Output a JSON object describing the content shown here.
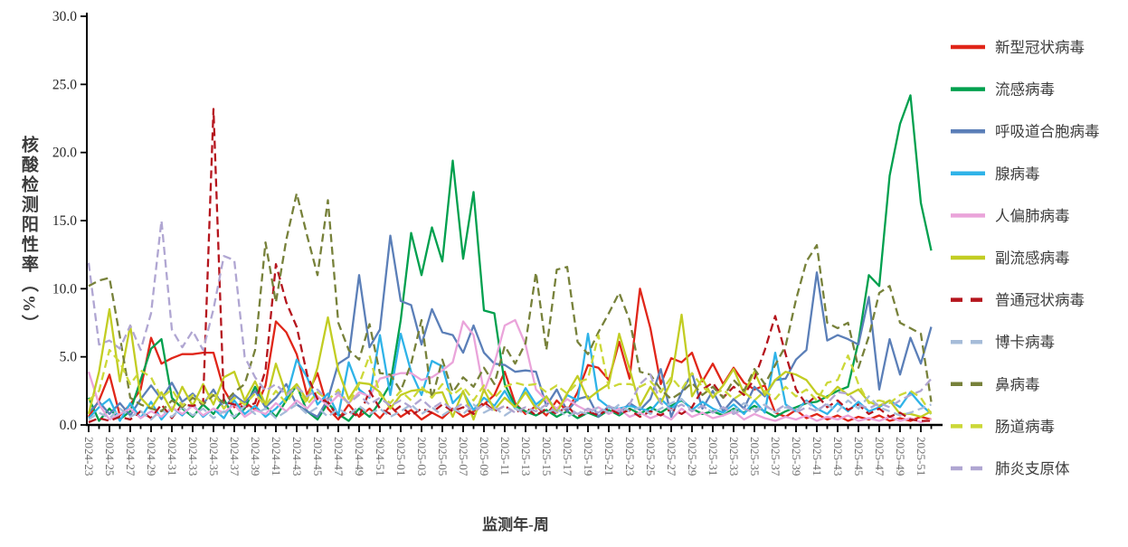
{
  "axes": {
    "x_title": "监测年-周",
    "y_title": "核酸检测阳性率（%）"
  },
  "chart_data": {
    "type": "line",
    "title": "",
    "xlabel": "监测年-周",
    "ylabel": "核酸检测阳性率（%）",
    "ylim": [
      0,
      30
    ],
    "ytick_step": 5,
    "ytick_labels": [
      "0.0",
      "5.0",
      "10.0",
      "15.0",
      "20.0",
      "25.0",
      "30.0"
    ],
    "grid": false,
    "legend_position": "right",
    "xtick_label_every": 2,
    "x_categories": [
      "2024-23",
      "2024-24",
      "2024-25",
      "2024-26",
      "2024-27",
      "2024-28",
      "2024-29",
      "2024-30",
      "2024-31",
      "2024-32",
      "2024-33",
      "2024-34",
      "2024-35",
      "2024-36",
      "2024-37",
      "2024-38",
      "2024-39",
      "2024-40",
      "2024-41",
      "2024-42",
      "2024-43",
      "2024-44",
      "2024-45",
      "2024-46",
      "2024-47",
      "2024-48",
      "2024-49",
      "2024-50",
      "2024-51",
      "2024-52",
      "2025-01",
      "2025-02",
      "2025-03",
      "2025-04",
      "2025-05",
      "2025-06",
      "2025-07",
      "2025-08",
      "2025-09",
      "2025-10",
      "2025-11",
      "2025-12",
      "2025-13",
      "2025-14",
      "2025-15",
      "2025-16",
      "2025-17",
      "2025-18",
      "2025-19",
      "2025-20",
      "2025-21",
      "2025-22",
      "2025-23",
      "2025-24",
      "2025-25",
      "2025-26",
      "2025-27",
      "2025-28",
      "2025-29",
      "2025-30",
      "2025-31",
      "2025-32",
      "2025-33",
      "2025-34",
      "2025-35",
      "2025-36",
      "2025-37",
      "2025-38",
      "2025-39",
      "2025-40",
      "2025-41",
      "2025-42",
      "2025-43",
      "2025-44",
      "2025-45",
      "2025-46",
      "2025-47",
      "2025-48",
      "2025-49",
      "2025-50",
      "2025-51",
      "2025-52"
    ],
    "series": [
      {
        "name": "新型冠状病毒",
        "color": "#e02619",
        "style": "solid",
        "values": [
          0.6,
          1.8,
          3.7,
          0.7,
          1.5,
          2.6,
          6.4,
          4.5,
          4.9,
          5.2,
          5.2,
          5.3,
          5.3,
          2.6,
          1.3,
          1.7,
          1.1,
          2.9,
          7.6,
          6.8,
          5.2,
          2.2,
          3.8,
          1.2,
          0.4,
          1.5,
          0.6,
          1.2,
          0.5,
          1.4,
          0.6,
          1.1,
          0.4,
          0.9,
          0.5,
          1.2,
          0.6,
          1.0,
          1.5,
          2.2,
          3.9,
          1.6,
          0.8,
          1.4,
          0.7,
          1.8,
          1.0,
          2.4,
          4.4,
          4.2,
          3.3,
          6.1,
          3.4,
          10.0,
          7.1,
          3.0,
          4.9,
          4.6,
          5.3,
          3.2,
          4.5,
          3.0,
          4.2,
          3.1,
          2.6,
          2.9,
          0.9,
          0.6,
          1.1,
          0.5,
          0.8,
          0.4,
          0.7,
          0.3,
          0.6,
          0.4,
          0.7,
          0.3,
          0.5,
          0.3,
          0.6,
          0.4
        ]
      },
      {
        "name": "流感病毒",
        "color": "#00a04e",
        "style": "solid",
        "values": [
          2.0,
          0.3,
          1.2,
          0.4,
          1.0,
          3.3,
          5.6,
          6.3,
          2.0,
          1.2,
          0.6,
          1.5,
          0.8,
          1.9,
          0.5,
          1.2,
          2.8,
          1.4,
          0.6,
          1.8,
          2.9,
          1.0,
          0.4,
          1.6,
          0.8,
          0.3,
          1.2,
          0.6,
          1.7,
          3.0,
          7.7,
          14.1,
          11.0,
          14.5,
          12.0,
          19.4,
          12.2,
          17.1,
          8.4,
          8.2,
          3.0,
          1.4,
          1.0,
          0.7,
          1.1,
          0.6,
          1.0,
          0.5,
          0.9,
          0.6,
          1.1,
          0.7,
          1.2,
          0.8,
          1.3,
          0.9,
          1.4,
          1.8,
          1.2,
          0.8,
          1.0,
          0.7,
          1.2,
          0.9,
          1.4,
          1.0,
          0.6,
          1.0,
          1.3,
          1.6,
          1.7,
          2.1,
          2.5,
          2.8,
          6.1,
          11.0,
          10.2,
          18.3,
          22.1,
          24.2,
          16.3,
          12.8
        ]
      },
      {
        "name": "呼吸道合胞病毒",
        "color": "#5b7fb8",
        "style": "solid",
        "values": [
          0.9,
          1.7,
          0.8,
          1.6,
          0.7,
          1.9,
          2.9,
          1.9,
          3.1,
          1.7,
          2.3,
          1.5,
          2.6,
          1.2,
          2.2,
          1.6,
          2.5,
          1.3,
          2.0,
          3.0,
          1.5,
          1.0,
          0.6,
          1.9,
          4.5,
          5.0,
          11.0,
          5.7,
          7.0,
          13.9,
          9.1,
          8.8,
          5.9,
          8.5,
          6.8,
          6.6,
          5.3,
          7.3,
          5.3,
          4.5,
          4.4,
          3.9,
          4.0,
          3.9,
          1.4,
          2.6,
          1.0,
          1.9,
          2.1,
          0.6,
          1.4,
          0.8,
          1.6,
          1.1,
          1.9,
          4.1,
          0.6,
          2.4,
          3.8,
          1.2,
          2.5,
          1.0,
          1.9,
          1.2,
          2.8,
          2.1,
          3.3,
          3.4,
          4.8,
          5.5,
          11.2,
          6.2,
          6.6,
          6.3,
          5.9,
          9.4,
          2.6,
          6.3,
          3.7,
          6.4,
          4.5,
          7.2
        ]
      },
      {
        "name": "腺病毒",
        "color": "#2fb3e8",
        "style": "solid",
        "values": [
          0.5,
          1.3,
          1.9,
          0.3,
          1.6,
          0.5,
          1.7,
          0.4,
          1.3,
          0.7,
          1.5,
          0.6,
          1.2,
          0.5,
          1.8,
          0.8,
          1.4,
          0.6,
          1.2,
          2.0,
          4.8,
          3.5,
          1.5,
          2.3,
          0.7,
          4.6,
          2.6,
          2.0,
          6.6,
          2.2,
          6.7,
          3.9,
          2.2,
          4.7,
          4.3,
          1.6,
          2.4,
          1.1,
          2.0,
          1.4,
          2.5,
          1.2,
          2.7,
          1.5,
          2.1,
          1.0,
          2.2,
          1.8,
          6.7,
          1.9,
          1.3,
          1.2,
          1.4,
          1.2,
          1.0,
          1.9,
          1.2,
          1.9,
          1.1,
          1.7,
          1.2,
          0.9,
          1.5,
          0.8,
          1.8,
          0.9,
          5.3,
          1.5,
          1.0,
          1.8,
          1.2,
          0.8,
          1.6,
          1.0,
          1.7,
          1.0,
          1.3,
          1.8,
          1.3,
          2.4,
          1.5,
          0.8
        ]
      },
      {
        "name": "人偏肺病毒",
        "color": "#eaa4da",
        "style": "solid",
        "values": [
          3.9,
          1.5,
          0.4,
          0.8,
          1.2,
          0.5,
          1.0,
          0.6,
          1.3,
          0.8,
          1.4,
          0.7,
          1.2,
          0.9,
          1.5,
          0.6,
          1.1,
          0.8,
          1.6,
          1.0,
          1.8,
          1.2,
          2.1,
          1.4,
          2.2,
          1.6,
          2.4,
          2.1,
          3.4,
          3.6,
          3.8,
          3.8,
          3.3,
          3.5,
          4.0,
          4.6,
          7.6,
          6.6,
          2.4,
          4.5,
          7.3,
          7.7,
          5.9,
          2.6,
          1.8,
          1.2,
          1.9,
          1.4,
          1.0,
          1.3,
          0.8,
          1.2,
          0.6,
          0.9,
          0.5,
          0.8,
          0.4,
          1.2,
          0.6,
          0.9,
          0.5,
          0.7,
          1.0,
          0.4,
          0.8,
          0.5,
          0.3,
          0.6,
          0.4,
          0.7,
          0.3,
          0.6,
          0.4,
          0.7,
          0.3,
          0.5,
          0.3,
          0.6,
          0.3,
          0.5,
          0.2,
          0.4
        ]
      },
      {
        "name": "副流感病毒",
        "color": "#c2cd23",
        "style": "solid",
        "values": [
          0.8,
          3.9,
          8.5,
          3.2,
          7.3,
          2.0,
          1.2,
          2.4,
          1.0,
          2.8,
          1.4,
          3.0,
          1.5,
          3.5,
          3.9,
          1.8,
          3.2,
          1.5,
          4.5,
          2.2,
          3.0,
          1.8,
          4.2,
          7.9,
          4.0,
          1.9,
          3.1,
          3.0,
          2.4,
          1.2,
          2.2,
          2.5,
          2.6,
          2.3,
          2.4,
          0.6,
          2.5,
          0.4,
          2.6,
          1.1,
          2.0,
          1.3,
          2.4,
          1.2,
          2.1,
          0.9,
          2.3,
          3.6,
          1.9,
          2.5,
          3.0,
          6.7,
          4.1,
          1.4,
          2.8,
          1.6,
          3.2,
          8.1,
          2.1,
          3.4,
          2.0,
          2.9,
          4.1,
          2.3,
          3.9,
          2.2,
          3.3,
          3.9,
          3.7,
          3.3,
          2.3,
          2.0,
          2.8,
          2.2,
          2.6,
          1.7,
          1.4,
          1.8,
          0.8,
          0.8,
          0.6,
          1.0
        ]
      },
      {
        "name": "普通冠状病毒",
        "color": "#b5151d",
        "style": "dashed",
        "values": [
          0.2,
          0.5,
          0.3,
          0.6,
          0.4,
          1.0,
          0.5,
          1.5,
          0.5,
          1.5,
          1.4,
          1.6,
          23.2,
          1.7,
          1.5,
          1.3,
          1.6,
          4.0,
          11.8,
          9.0,
          7.2,
          3.7,
          1.9,
          1.7,
          0.5,
          1.0,
          0.6,
          2.5,
          1.2,
          0.8,
          1.4,
          0.7,
          1.2,
          0.9,
          1.5,
          1.0,
          1.3,
          0.8,
          1.7,
          1.0,
          1.4,
          0.9,
          1.3,
          0.7,
          1.2,
          0.8,
          1.4,
          0.6,
          1.0,
          0.7,
          1.2,
          0.8,
          1.1,
          0.6,
          1.0,
          0.7,
          1.2,
          0.8,
          1.3,
          2.6,
          3.1,
          2.0,
          2.8,
          2.2,
          3.4,
          5.5,
          8.0,
          5.2,
          2.6,
          1.5,
          2.2,
          1.3,
          1.8,
          1.1,
          1.5,
          0.8,
          1.2,
          0.6,
          0.9,
          0.4,
          0.3,
          0.3
        ]
      },
      {
        "name": "博卡病毒",
        "color": "#a6bcd9",
        "style": "dashed",
        "values": [
          0.4,
          0.9,
          0.5,
          1.2,
          0.6,
          1.0,
          0.4,
          1.1,
          0.6,
          1.3,
          0.7,
          1.2,
          0.5,
          1.0,
          0.6,
          1.4,
          0.8,
          1.2,
          0.5,
          1.0,
          1.5,
          0.8,
          1.3,
          0.6,
          1.2,
          0.7,
          1.4,
          0.8,
          1.2,
          0.6,
          1.0,
          1.5,
          0.8,
          1.3,
          0.7,
          1.2,
          0.8,
          1.5,
          0.9,
          1.3,
          0.7,
          1.2,
          0.8,
          1.4,
          0.9,
          1.2,
          0.6,
          1.0,
          0.8,
          1.3,
          0.9,
          1.5,
          1.0,
          1.3,
          0.8,
          1.2,
          1.6,
          1.9,
          1.0,
          1.4,
          0.9,
          1.3,
          1.0,
          1.6,
          1.1,
          1.5,
          0.9,
          1.3,
          1.0,
          1.7,
          1.1,
          1.5,
          1.0,
          1.8,
          1.2,
          2.1,
          1.3,
          1.0,
          0.7,
          0.9,
          1.2,
          1.5
        ]
      },
      {
        "name": "鼻病毒",
        "color": "#77813a",
        "style": "dashed",
        "values": [
          10.2,
          10.6,
          10.8,
          6.5,
          2.0,
          1.5,
          1.2,
          1.0,
          1.8,
          1.3,
          2.0,
          1.5,
          2.2,
          1.6,
          2.4,
          3.0,
          5.5,
          13.4,
          9.0,
          13.6,
          17.0,
          13.9,
          11.0,
          16.5,
          7.5,
          5.5,
          4.8,
          7.4,
          3.8,
          3.7,
          2.5,
          4.5,
          7.7,
          1.9,
          4.8,
          2.4,
          3.5,
          2.8,
          4.2,
          3.0,
          5.8,
          4.5,
          6.0,
          11.2,
          5.5,
          11.4,
          11.6,
          6.1,
          5.2,
          6.8,
          8.2,
          9.7,
          7.7,
          3.9,
          3.7,
          2.6,
          1.9,
          2.4,
          3.1,
          2.2,
          2.8,
          2.0,
          3.3,
          2.5,
          4.1,
          3.0,
          4.4,
          5.8,
          9.2,
          12.0,
          13.2,
          7.5,
          7.1,
          7.5,
          4.2,
          6.5,
          9.7,
          10.2,
          7.5,
          7.1,
          6.7,
          1.7
        ]
      },
      {
        "name": "肠道病毒",
        "color": "#ccd838",
        "style": "dashed",
        "values": [
          1.8,
          2.5,
          5.5,
          4.6,
          3.0,
          4.0,
          3.5,
          2.0,
          2.6,
          1.4,
          2.2,
          1.6,
          2.4,
          1.2,
          2.0,
          1.5,
          2.3,
          1.4,
          2.5,
          1.6,
          2.8,
          1.5,
          2.4,
          1.8,
          2.6,
          1.5,
          3.0,
          5.1,
          2.2,
          1.6,
          2.5,
          1.8,
          2.8,
          2.0,
          3.0,
          2.2,
          2.8,
          1.8,
          2.9,
          2.0,
          2.8,
          3.1,
          2.9,
          3.0,
          2.4,
          2.9,
          2.3,
          3.1,
          3.4,
          6.6,
          2.7,
          3.0,
          3.0,
          2.8,
          3.2,
          2.4,
          3.5,
          2.6,
          3.8,
          2.8,
          2.2,
          2.6,
          1.9,
          2.4,
          1.8,
          2.5,
          1.9,
          2.8,
          2.1,
          2.6,
          1.8,
          3.1,
          3.3,
          5.1,
          3.0,
          1.6,
          1.8,
          1.6,
          2.2,
          2.5,
          2.0,
          0.8
        ]
      },
      {
        "name": "肺炎支原体",
        "color": "#b0a6d2",
        "style": "dashed",
        "values": [
          11.9,
          5.9,
          6.2,
          5.6,
          7.3,
          5.5,
          8.2,
          15.0,
          7.0,
          5.7,
          6.9,
          5.5,
          8.5,
          12.4,
          12.1,
          5.0,
          3.5,
          2.5,
          3.0,
          2.2,
          2.8,
          2.1,
          2.6,
          1.8,
          2.4,
          1.6,
          2.2,
          1.5,
          2.0,
          1.4,
          1.8,
          1.3,
          1.9,
          1.2,
          1.7,
          1.1,
          1.6,
          1.0,
          1.5,
          1.0,
          1.4,
          0.9,
          1.3,
          1.0,
          1.5,
          0.9,
          1.3,
          0.8,
          1.2,
          0.9,
          1.4,
          1.0,
          1.5,
          3.0,
          3.7,
          1.6,
          1.1,
          1.5,
          1.0,
          1.4,
          0.9,
          1.3,
          0.8,
          1.2,
          0.9,
          1.4,
          1.0,
          1.5,
          0.9,
          1.3,
          1.0,
          1.6,
          2.4,
          2.3,
          1.5,
          1.2,
          1.6,
          1.3,
          1.8,
          2.2,
          2.5,
          3.4
        ]
      }
    ]
  }
}
